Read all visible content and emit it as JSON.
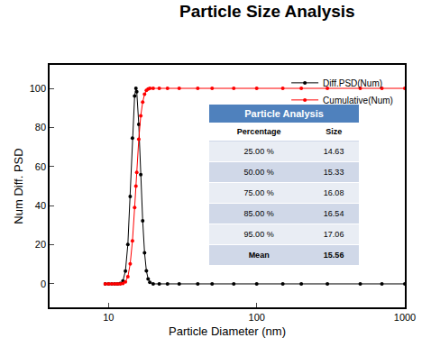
{
  "chart_data": {
    "type": "line",
    "title": "Particle Size Analysis",
    "x_label": "Particle Diameter (nm)",
    "y_label": "Num Diff. PSD",
    "log": "x",
    "grid": false,
    "legend": "upper right",
    "xlim": [
      4,
      1000
    ],
    "xticks": [
      10,
      100,
      1000
    ],
    "ylim": [
      -12,
      112
    ],
    "yticks": [
      0,
      20,
      40,
      60,
      80,
      100
    ],
    "x": [
      9.5,
      10,
      10.5,
      11,
      11.5,
      12,
      12.5,
      13,
      13.5,
      14,
      14.5,
      15,
      15.3,
      15.5,
      16,
      16.5,
      17,
      17.5,
      18,
      18.5,
      19,
      20,
      22,
      25,
      30,
      40,
      50,
      70,
      100,
      150,
      200,
      300,
      500,
      700,
      1000
    ],
    "series": [
      {
        "name": "Diff.PSD(Num)",
        "color": "#000000",
        "marker": "circle",
        "line_style": "solid",
        "values": [
          0,
          0,
          0,
          0,
          0,
          0.2,
          1.5,
          6.6,
          20.2,
          44.7,
          74.5,
          96.1,
          100,
          98.3,
          81.6,
          55.9,
          32.3,
          15.9,
          6.7,
          2.5,
          0.8,
          0,
          0,
          0,
          0,
          0,
          0,
          0,
          0,
          0,
          0,
          0,
          0,
          0,
          0
        ]
      },
      {
        "name": "Cumulative(Num)",
        "color": "#ff0000",
        "marker": "circle",
        "line_style": "solid",
        "values": [
          0,
          0,
          0,
          0,
          0,
          0,
          0.2,
          1,
          3.7,
          10.2,
          22,
          39,
          50,
          57,
          74,
          86,
          93,
          97,
          99,
          99.7,
          100,
          100,
          100,
          100,
          100,
          100,
          100,
          100,
          100,
          100,
          100,
          100,
          100,
          100,
          100
        ]
      }
    ],
    "table": {
      "title": "Particle Analysis",
      "header": [
        "Percentage",
        "Size"
      ],
      "rows": [
        [
          "25.00 %",
          14.63
        ],
        [
          "50.00 %",
          15.33
        ],
        [
          "75.00 %",
          16.08
        ],
        [
          "85.00 %",
          16.54
        ],
        [
          "95.00 %",
          17.06
        ],
        [
          "Mean",
          15.56
        ]
      ]
    }
  }
}
